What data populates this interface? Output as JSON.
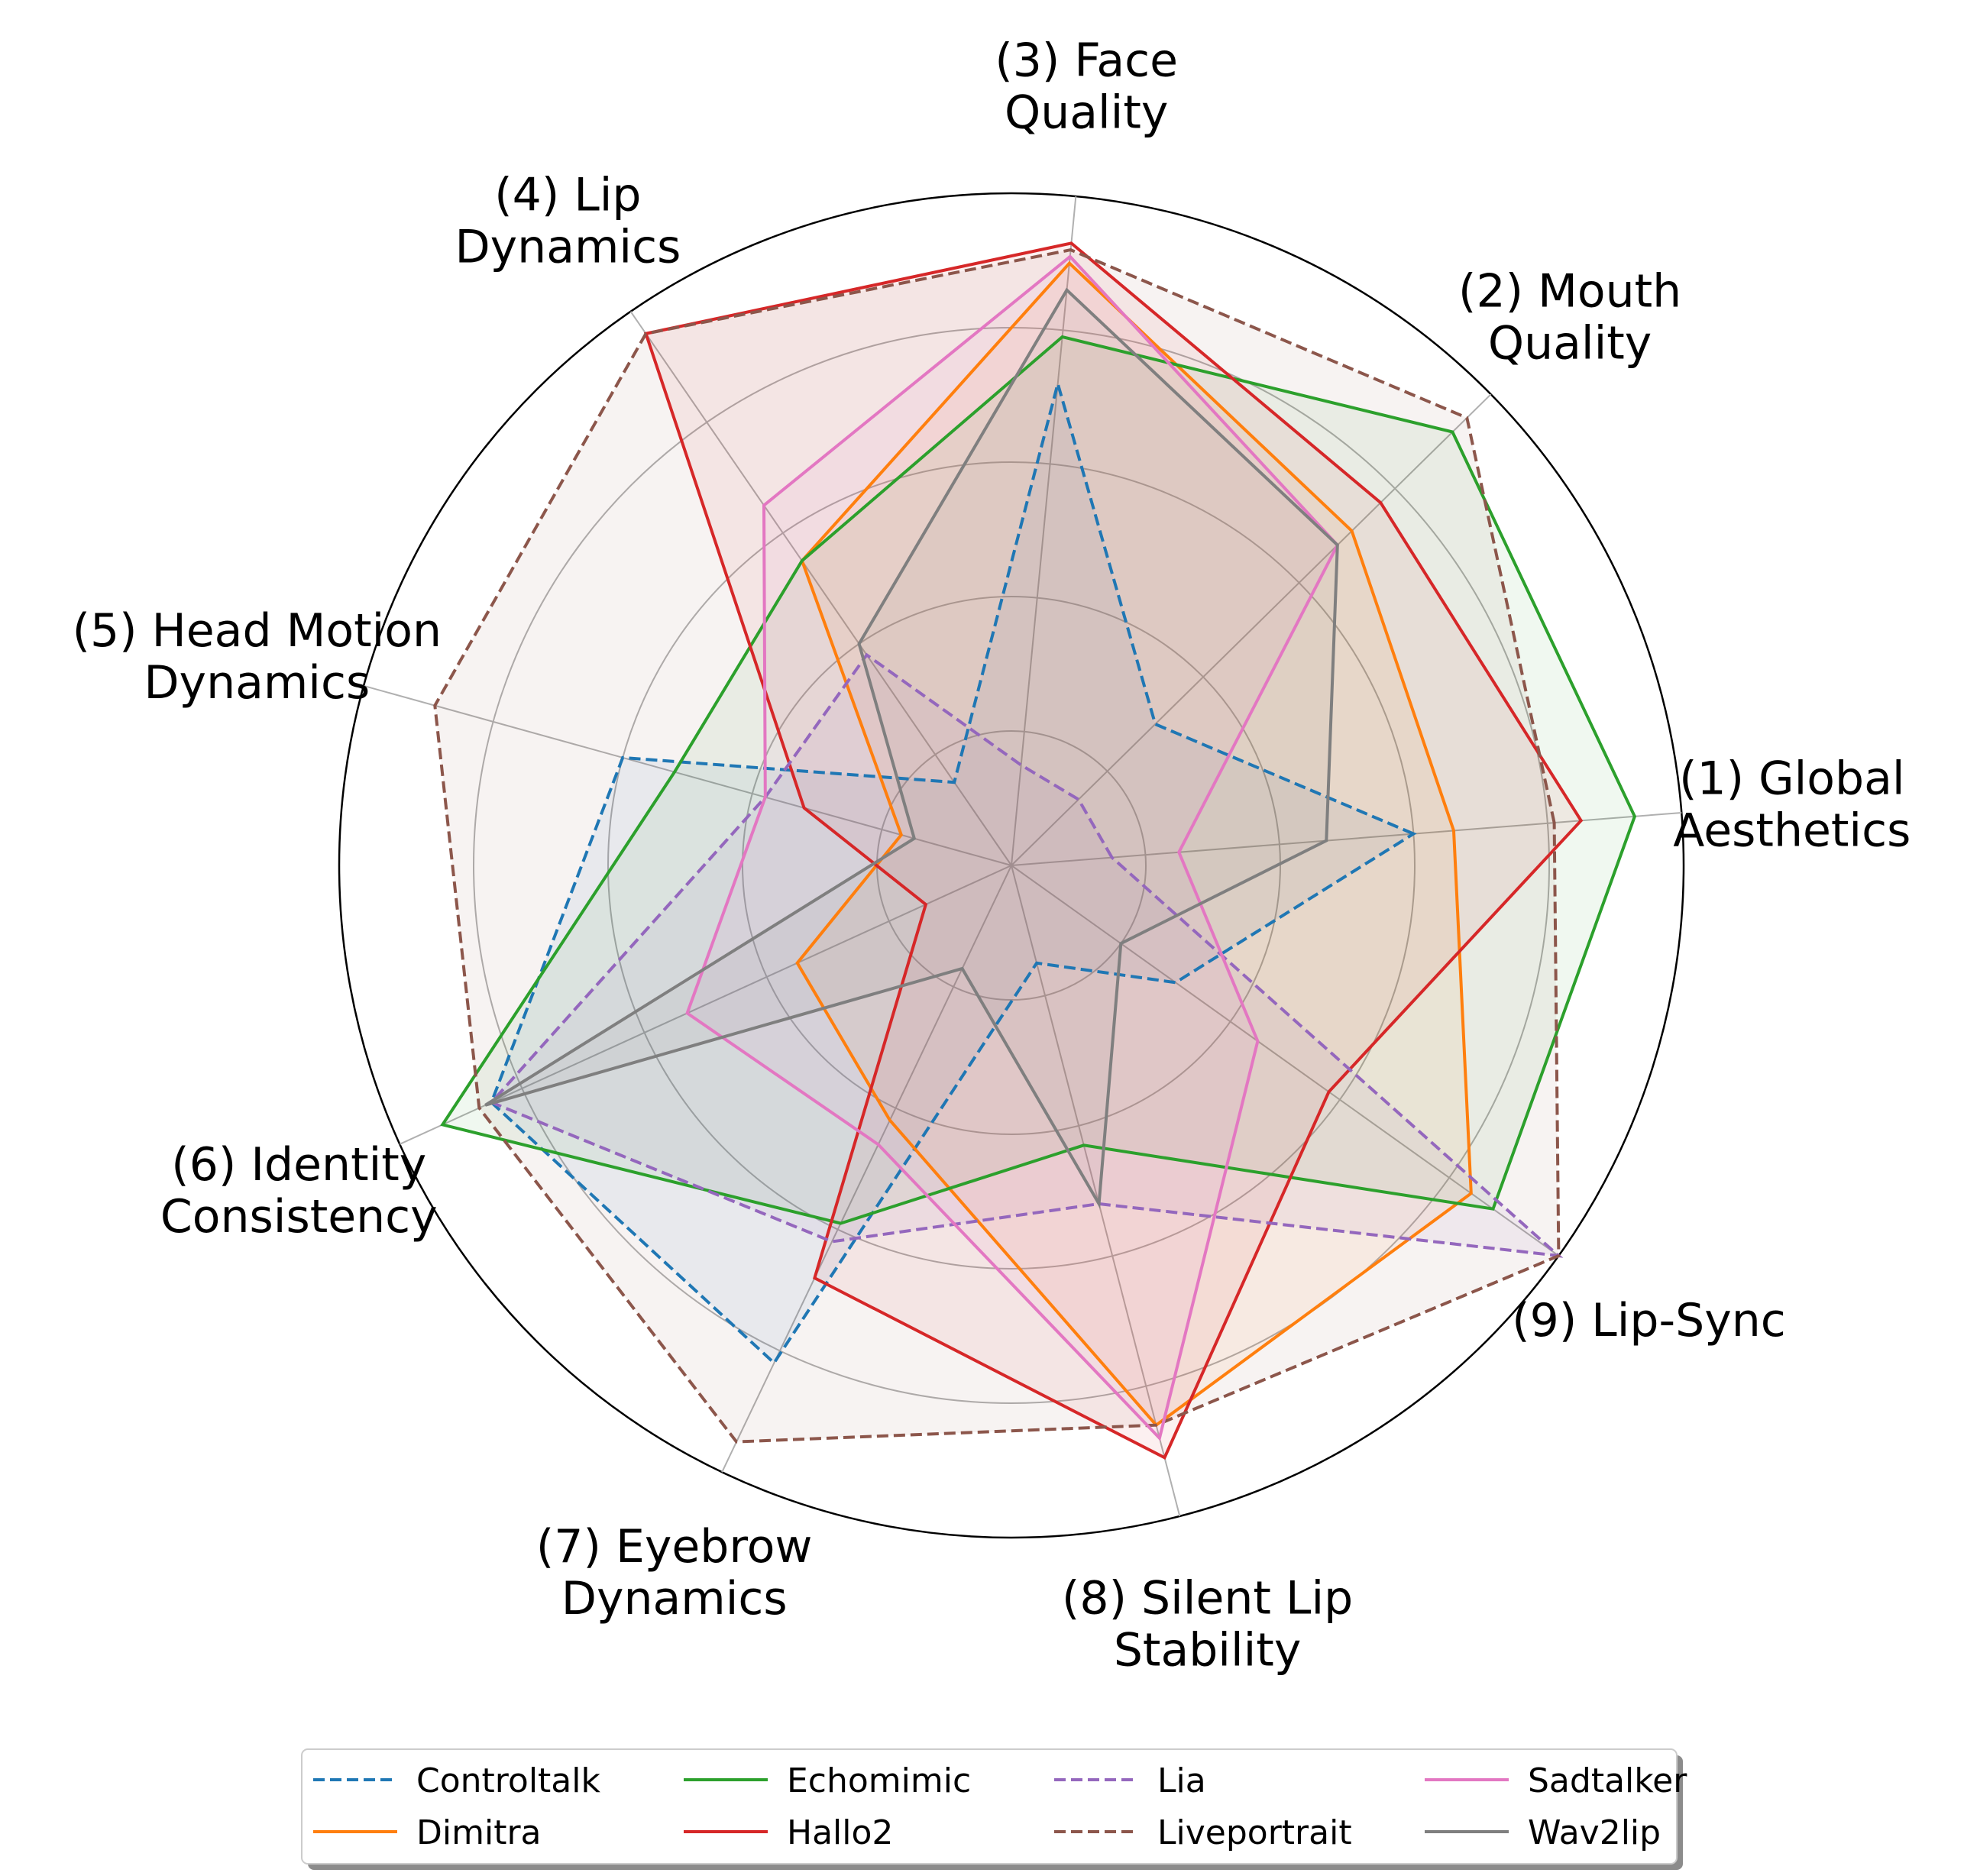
{
  "chart_data": {
    "type": "radar",
    "title": "",
    "axes": [
      {
        "id": "1",
        "lines": [
          "(1) Global",
          "Aesthetics"
        ]
      },
      {
        "id": "2",
        "lines": [
          "(2) Mouth",
          "Quality"
        ]
      },
      {
        "id": "3",
        "lines": [
          "(3) Face",
          "Quality"
        ]
      },
      {
        "id": "4",
        "lines": [
          "(4) Lip",
          "Dynamics"
        ]
      },
      {
        "id": "5",
        "lines": [
          "(5) Head Motion",
          "Dynamics"
        ]
      },
      {
        "id": "6",
        "lines": [
          "(6) Identity",
          "Consistency"
        ]
      },
      {
        "id": "7",
        "lines": [
          "(7) Eyebrow",
          "Dynamics"
        ]
      },
      {
        "id": "8",
        "lines": [
          "(8) Silent Lip",
          "Stability"
        ]
      },
      {
        "id": "9",
        "lines": [
          "(9) Lip-Sync"
        ]
      }
    ],
    "rlim": [
      0,
      1
    ],
    "rgrid": [
      0.2,
      0.4,
      0.6,
      0.8,
      1.0
    ],
    "grid": true,
    "legend_position": "bottom",
    "series": [
      {
        "name": "Controltalk",
        "color": "#1f77b4",
        "dashed": true,
        "values": [
          0.6,
          0.3,
          0.72,
          0.15,
          0.6,
          0.85,
          0.82,
          0.15,
          0.3
        ]
      },
      {
        "name": "Dimitra",
        "color": "#ff7f0e",
        "dashed": false,
        "values": [
          0.66,
          0.71,
          0.9,
          0.55,
          0.17,
          0.35,
          0.42,
          0.86,
          0.84
        ]
      },
      {
        "name": "Echomimic",
        "color": "#2ca02c",
        "dashed": false,
        "values": [
          0.93,
          0.92,
          0.79,
          0.55,
          0.52,
          0.93,
          0.59,
          0.43,
          0.88
        ]
      },
      {
        "name": "Hallo2",
        "color": "#d62728",
        "dashed": false,
        "values": [
          0.85,
          0.77,
          0.93,
          0.96,
          0.32,
          0.14,
          0.68,
          0.91,
          0.58
        ]
      },
      {
        "name": "Lia",
        "color": "#9467bd",
        "dashed": true,
        "values": [
          0.15,
          0.14,
          0.15,
          0.38,
          0.38,
          0.85,
          0.62,
          0.52,
          1.0
        ]
      },
      {
        "name": "Liveportrait",
        "color": "#8c564b",
        "dashed": true,
        "values": [
          0.81,
          0.95,
          0.92,
          0.96,
          0.89,
          0.87,
          0.95,
          0.86,
          1.0
        ]
      },
      {
        "name": "Sadtalker",
        "color": "#e377c2",
        "dashed": false,
        "values": [
          0.25,
          0.68,
          0.91,
          0.65,
          0.38,
          0.53,
          0.46,
          0.88,
          0.45
        ]
      },
      {
        "name": "Wav2lip",
        "color": "#7f7f7f",
        "dashed": false,
        "values": [
          0.47,
          0.68,
          0.86,
          0.4,
          0.15,
          0.86,
          0.17,
          0.52,
          0.2
        ]
      }
    ]
  }
}
